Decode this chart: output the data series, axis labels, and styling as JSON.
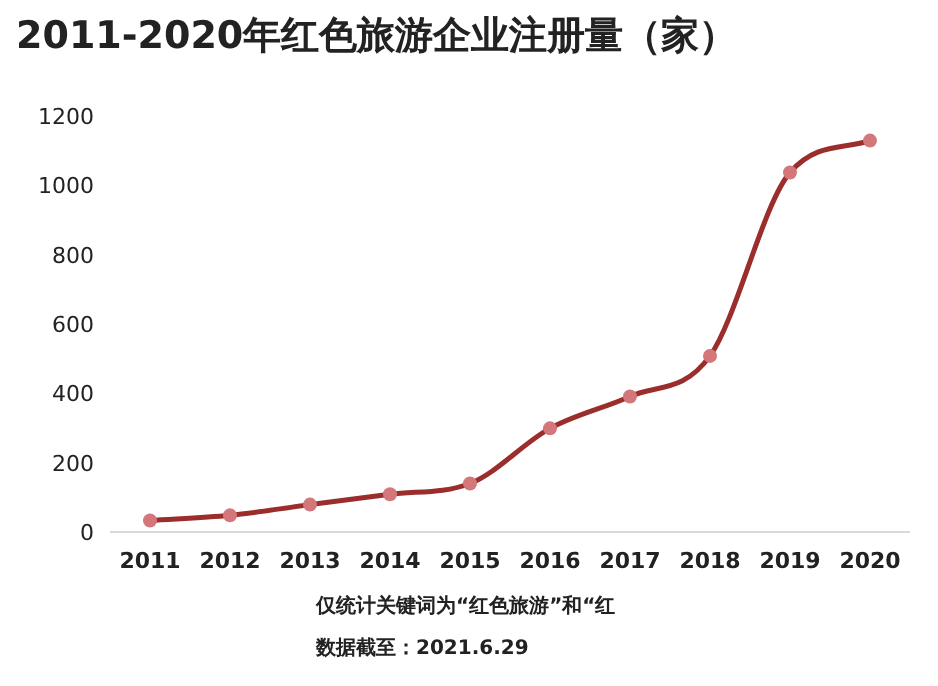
{
  "chart_data": {
    "type": "line",
    "title": "2011-2020年红色旅游企业注册量（家）",
    "categories": [
      "2011",
      "2012",
      "2013",
      "2014",
      "2015",
      "2016",
      "2017",
      "2018",
      "2019",
      "2020"
    ],
    "series": [
      {
        "color": "#9b2d2d",
        "values": [
          33,
          48,
          79,
          109,
          140,
          299,
          391,
          508,
          1037,
          1129
        ]
      }
    ],
    "marker": "circle",
    "line_style": "solid",
    "ylim": [
      0,
      1200
    ],
    "yticks": [
      0,
      200,
      400,
      600,
      800,
      1000,
      1200
    ],
    "grid": false,
    "annotations": [
      "仅统计关键词为“红色旅游”和“红",
      "数据截至：2021.6.29"
    ]
  }
}
